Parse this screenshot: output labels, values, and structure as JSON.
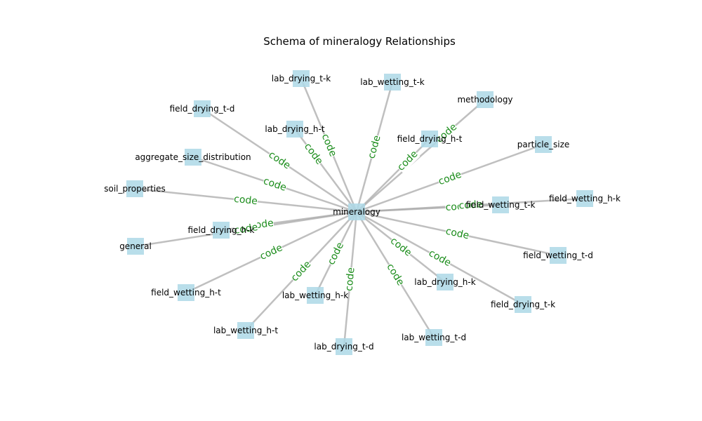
{
  "title": "Schema of mineralogy Relationships",
  "colors": {
    "node_fill": "#add8e6",
    "edge_stroke": "#a9a9a9",
    "edge_label": "#1a8c1a",
    "text": "#000000"
  },
  "center": {
    "label": "mineralogy"
  },
  "nodes": [
    {
      "label": "lab_drying_t-k"
    },
    {
      "label": "lab_wetting_t-k"
    },
    {
      "label": "methodology"
    },
    {
      "label": "field_drying_t-d"
    },
    {
      "label": "lab_drying_h-t"
    },
    {
      "label": "field_drying_h-t"
    },
    {
      "label": "particle_size"
    },
    {
      "label": "aggregate_size_distribution"
    },
    {
      "label": "soil_properties"
    },
    {
      "label": "field_wetting_t-k"
    },
    {
      "label": "field_wetting_h-k"
    },
    {
      "label": "field_drying_h-k"
    },
    {
      "label": "general"
    },
    {
      "label": "field_wetting_t-d"
    },
    {
      "label": "lab_drying_h-k"
    },
    {
      "label": "field_drying_t-k"
    },
    {
      "label": "field_wetting_h-t"
    },
    {
      "label": "lab_wetting_h-k"
    },
    {
      "label": "lab_wetting_h-t"
    },
    {
      "label": "lab_drying_t-d"
    },
    {
      "label": "lab_wetting_t-d"
    }
  ],
  "edge_label": "code"
}
